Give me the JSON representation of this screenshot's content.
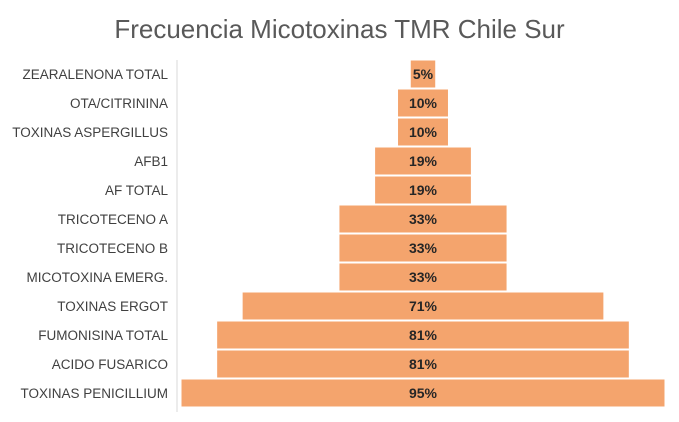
{
  "chart_data": {
    "type": "bar",
    "orientation": "horizontal",
    "style": "funnel",
    "title": "Frecuencia Micotoxinas TMR Chile Sur",
    "xlabel": "",
    "ylabel": "",
    "categories": [
      "ZEARALENONA TOTAL",
      "OTA/CITRININA",
      "TOXINAS ASPERGILLUS",
      "AFB1",
      "AF TOTAL",
      "TRICOTECENO A",
      "TRICOTECENO B",
      "MICOTOXINA EMERG.",
      "TOXINAS ERGOT",
      "FUMONISINA TOTAL",
      "ACIDO FUSARICO",
      "TOXINAS PENICILLIUM"
    ],
    "values": [
      5,
      10,
      10,
      19,
      19,
      33,
      33,
      33,
      71,
      81,
      81,
      95
    ],
    "value_labels": [
      "5%",
      "10%",
      "10%",
      "19%",
      "19%",
      "33%",
      "33%",
      "33%",
      "71%",
      "81%",
      "81%",
      "95%"
    ],
    "xlim": [
      0,
      95
    ],
    "grid": false,
    "legend": "none",
    "colors": {
      "bar": "#F4A46D",
      "bar_outline": "#ffffff",
      "axis_line": "#d9d9d9",
      "title": "#595959",
      "category_text": "#404040",
      "value_text": "#262626"
    }
  }
}
